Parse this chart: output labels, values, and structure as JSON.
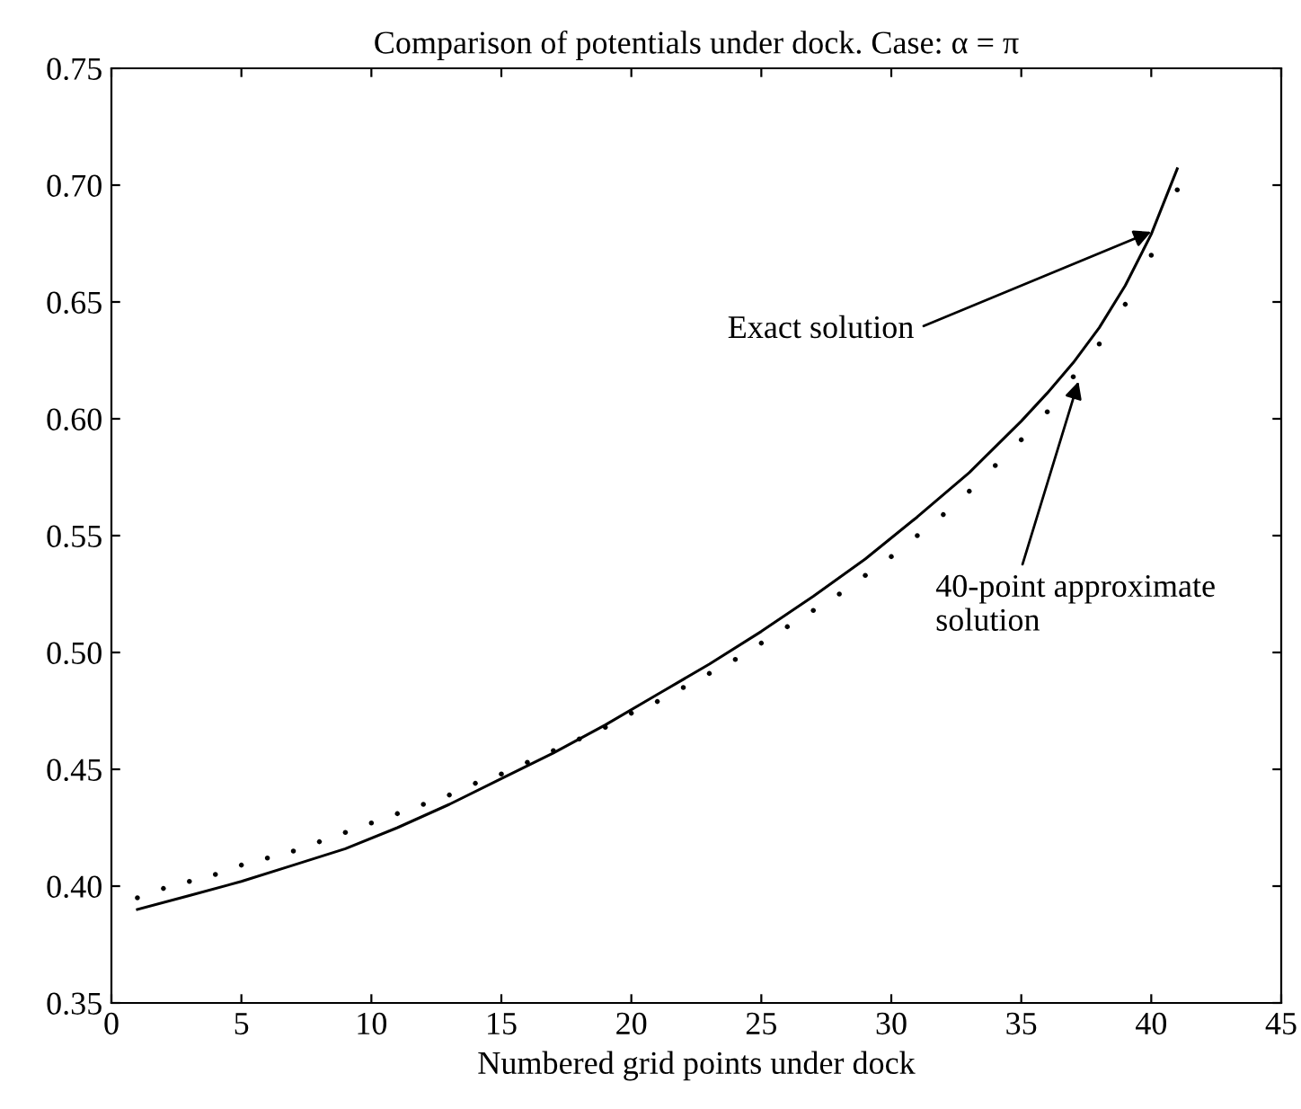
{
  "chart_data": {
    "type": "line",
    "title": "Comparison of potentials under dock. Case: α = π",
    "xlabel": "Numbered grid points under dock",
    "xlim": [
      0,
      45
    ],
    "xticks": [
      0,
      5,
      10,
      15,
      20,
      25,
      30,
      35,
      40,
      45
    ],
    "ylim": [
      0.35,
      0.75
    ],
    "yticks": [
      0.35,
      {
        "value": 0.4,
        "label": "0.40"
      },
      0.45,
      {
        "value": 0.5,
        "label": "0.50"
      },
      0.55,
      {
        "value": 0.6,
        "label": "0.60"
      },
      0.65,
      {
        "value": 0.7,
        "label": "0.70"
      },
      0.75
    ],
    "grid": false,
    "legend": false,
    "series": [
      {
        "color": "#000000",
        "x": [
          1,
          3,
          5,
          7,
          9,
          11,
          13,
          15,
          17,
          19,
          21,
          23,
          25,
          27,
          29,
          31,
          33,
          35,
          36,
          37,
          38,
          39,
          40,
          41
        ],
        "values": [
          0.39,
          0.396,
          0.402,
          0.409,
          0.416,
          0.425,
          0.435,
          0.446,
          0.457,
          0.469,
          0.482,
          0.495,
          0.509,
          0.524,
          0.54,
          0.558,
          0.577,
          0.599,
          0.611,
          0.624,
          0.639,
          0.657,
          0.679,
          0.707
        ]
      },
      {
        "type": "scatter",
        "color": "#000000",
        "x": [
          1,
          2,
          3,
          4,
          5,
          6,
          7,
          8,
          9,
          10,
          11,
          12,
          13,
          14,
          15,
          16,
          17,
          18,
          19,
          20,
          21,
          22,
          23,
          24,
          25,
          26,
          27,
          28,
          29,
          30,
          31,
          32,
          33,
          34,
          35,
          36,
          37,
          38,
          39,
          40,
          41
        ],
        "values": [
          0.395,
          0.399,
          0.402,
          0.405,
          0.409,
          0.412,
          0.415,
          0.419,
          0.423,
          0.427,
          0.431,
          0.435,
          0.439,
          0.444,
          0.448,
          0.453,
          0.458,
          0.463,
          0.468,
          0.474,
          0.479,
          0.485,
          0.491,
          0.497,
          0.504,
          0.511,
          0.518,
          0.525,
          0.533,
          0.541,
          0.55,
          0.559,
          0.569,
          0.58,
          0.591,
          0.603,
          0.618,
          0.632,
          0.649,
          0.67,
          0.698
        ]
      }
    ],
    "annotations": [
      {
        "text": "Exact solution",
        "x": 40,
        "y": 0.68
      },
      {
        "text": "40-point approximate\nsolution",
        "x": 37.2,
        "y": 0.616
      }
    ]
  }
}
